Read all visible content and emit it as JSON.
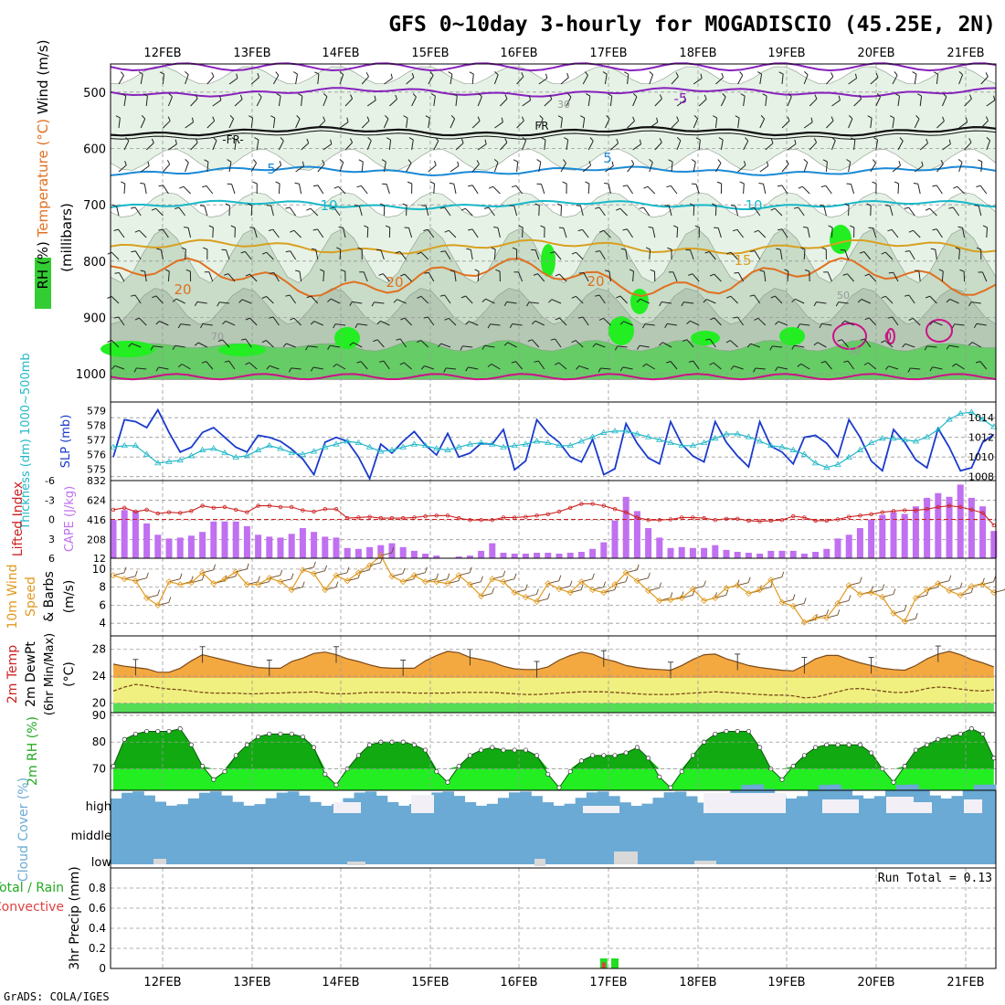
{
  "header": {
    "title": "GFS 0~10day 3-hourly for MOGADISCIO (45.25E, 2N)"
  },
  "footer": {
    "credit": "GrADS: COLA/IGES"
  },
  "colors": {
    "rh_light": "#e6f2e6",
    "rh_mid": "#c8dcc8",
    "rh_dark": "#b4c8b4",
    "rh_green": "#66cc66",
    "rh_bright": "#22ee22",
    "temp_purple": "#8822bb",
    "temp_blue": "#1a8ad6",
    "temp_cyan": "#18b8c8",
    "temp_gold": "#d8a020",
    "temp_orange": "#e07020",
    "temp_magenta": "#cc1188",
    "slp": "#1a3acc",
    "thickness": "#22b8c8",
    "cape": "#c070f0",
    "lifted": "#cc2222",
    "wind_speed": "#e09a20",
    "temp_fill": "#f4a840",
    "dew_fill": "#f0f080",
    "ground": "#55dd55",
    "rh_dark_fill": "#11aa11",
    "rh_light_fill": "#22ee22",
    "cloud": "#6aaad4",
    "rain": "#22dd22",
    "convective": "#e04040"
  },
  "chart_data": [
    {
      "type": "contour",
      "name": "upper-air",
      "ylabel_parts": [
        "RH (%)",
        "Temperature (°C)",
        "Wind (m/s)"
      ],
      "ylabel_axis": "(millibars)",
      "yticks": [
        "500",
        "600",
        "700",
        "800",
        "900",
        "1000"
      ],
      "ylim": [
        1050,
        450
      ],
      "xtick_labels": [
        "12FEB",
        "13FEB",
        "14FEB",
        "15FEB",
        "16FEB",
        "17FEB",
        "18FEB",
        "19FEB",
        "20FEB",
        "21FEB"
      ],
      "contour_labels": [
        "-5",
        "-FR-",
        "FR",
        "5",
        "5",
        "10",
        "10",
        "15",
        "20",
        "20",
        "20",
        "30",
        "50",
        "50",
        "70",
        "0"
      ],
      "isotherms": [
        {
          "name": "-5",
          "level": 500
        },
        {
          "name": "FR",
          "level": 570
        },
        {
          "name": "5",
          "level": 640
        },
        {
          "name": "10",
          "level": 700
        },
        {
          "name": "15",
          "level": 775
        },
        {
          "name": "20",
          "level": 830
        }
      ]
    },
    {
      "type": "line",
      "name": "slp-thickness",
      "ylabel_left": "Thickness (dm) 1000~500mb",
      "ylabel_right": "SLP (mb)",
      "left_ticks": [
        "575",
        "576",
        "577",
        "578",
        "579"
      ],
      "right_ticks": [
        "1008",
        "1010",
        "1012",
        "1014"
      ],
      "ylim_left": [
        574.2,
        579.6
      ],
      "ylim_right": [
        1007.6,
        1015.6
      ],
      "series": [
        {
          "name": "SLP",
          "axis": "right",
          "values": [
            1010,
            1013.8,
            1013.6,
            1013,
            1014.8,
            1012.5,
            1010.5,
            1011,
            1012.5,
            1013,
            1012,
            1011,
            1010.5,
            1012.2,
            1012,
            1011.6,
            1010.8,
            1009.8,
            1008.2,
            1011.5,
            1012,
            1011.6,
            1010,
            1007.8,
            1011.3,
            1010.4,
            1011.6,
            1012.6,
            1011.2,
            1010.2,
            1012.4,
            1010,
            1010.4,
            1011.4,
            1011.3,
            1012.8,
            1008.7,
            1009.6,
            1013.8,
            1012.4,
            1011.5,
            1010,
            1009.5,
            1011.8,
            1008.2,
            1008.8,
            1013.4,
            1011.4,
            1009.9,
            1009.3,
            1013.6,
            1011.3,
            1010.1,
            1009.5,
            1013.6,
            1011.5,
            1010.1,
            1009,
            1013.6,
            1011.1,
            1010.5,
            1009.3,
            1012,
            1012.2,
            1011.4,
            1010,
            1013.8,
            1012,
            1009.6,
            1008.6,
            1012.8,
            1011.5,
            1009.7,
            1008.9,
            1012.9,
            1011,
            1008.6,
            1008.9,
            1011.5,
            1012.3
          ]
        },
        {
          "name": "Thickness",
          "axis": "left",
          "values": [
            576.5,
            576.6,
            576.6,
            576,
            575.4,
            575.5,
            575.6,
            575.9,
            576.3,
            576.4,
            576.1,
            575.8,
            575.9,
            576.3,
            576.6,
            576.4,
            576.1,
            576,
            576.2,
            576.5,
            576.7,
            576.9,
            576.8,
            576.5,
            576.2,
            576.3,
            576.5,
            576.7,
            576.6,
            576.4,
            576.3,
            576.5,
            576.7,
            576.8,
            576.7,
            576.5,
            576.6,
            576.7,
            576.9,
            576.8,
            576.6,
            576.6,
            576.9,
            577.2,
            577.5,
            577.6,
            577.6,
            577.4,
            577.2,
            577,
            576.8,
            576.6,
            576.6,
            576.8,
            577.1,
            577.4,
            577.4,
            577.2,
            576.9,
            576.6,
            576.5,
            576.3,
            576,
            575.4,
            575.1,
            575.3,
            575.8,
            576.3,
            576.8,
            577.1,
            577.1,
            577,
            576.9,
            577.2,
            577.7,
            578.4,
            578.8,
            578.9,
            578.4,
            577.9
          ]
        }
      ]
    },
    {
      "type": "bar-line",
      "name": "cape-lifted",
      "ylabel_left": "Lifted Index",
      "ylabel_right": "CAPE (J/kg)",
      "left_ticks": [
        "-6",
        "-3",
        "0",
        "3",
        "6"
      ],
      "right_ticks": [
        "832",
        "624",
        "416",
        "208",
        "12"
      ],
      "cape_ylim": [
        12,
        832
      ],
      "lifted_ylim": [
        6,
        -6
      ],
      "series": [
        {
          "name": "CAPE",
          "values": [
            416,
            520,
            510,
            380,
            260,
            220,
            230,
            250,
            290,
            400,
            400,
            400,
            350,
            260,
            240,
            230,
            270,
            330,
            290,
            240,
            230,
            120,
            110,
            130,
            150,
            170,
            130,
            90,
            60,
            40,
            12,
            30,
            40,
            90,
            170,
            70,
            60,
            60,
            70,
            70,
            60,
            70,
            80,
            110,
            180,
            410,
            660,
            510,
            330,
            230,
            120,
            130,
            120,
            120,
            150,
            100,
            80,
            70,
            60,
            90,
            90,
            90,
            60,
            80,
            110,
            220,
            260,
            330,
            420,
            470,
            500,
            480,
            560,
            650,
            700,
            660,
            790,
            650,
            560,
            300
          ]
        },
        {
          "name": "Lifted Index",
          "values": [
            -1.5,
            -1.8,
            -1.2,
            -1.5,
            -0.9,
            -1.1,
            -1,
            -1.3,
            -2.1,
            -1.8,
            -1.9,
            -1.5,
            -1.1,
            -2.1,
            -2.1,
            -1.9,
            -1.9,
            -1.4,
            -1.2,
            -1.6,
            -1.6,
            -0.2,
            -0.3,
            -0.4,
            -0.2,
            -0.2,
            -0.2,
            -0.3,
            -0.5,
            -0.6,
            -0.6,
            -0.2,
            0.1,
            0.1,
            0.1,
            -0.3,
            -0.3,
            -0.4,
            -0.6,
            -0.8,
            -1.2,
            -1.8,
            -2.4,
            -2.4,
            -2.1,
            -1.6,
            -1.1,
            -0.3,
            0.1,
            0.1,
            0,
            -0.3,
            -0.3,
            -0.2,
            0.1,
            -0.1,
            -0.1,
            0.2,
            0.3,
            0.2,
            0.1,
            -0.5,
            -0.3,
            0.2,
            0.2,
            0,
            -0.4,
            -0.6,
            -0.8,
            -1.1,
            -1.3,
            -1.4,
            -1.4,
            -1.6,
            -1.9,
            -2.1,
            -1.9,
            -1.5,
            -1,
            0.9
          ]
        }
      ]
    },
    {
      "type": "line",
      "name": "wind-10m",
      "ylabel_lines": [
        "10m Wind",
        "Speed",
        "& Barbs",
        "(m/s)"
      ],
      "yticks": [
        "4",
        "6",
        "8",
        "10"
      ],
      "ylim": [
        2.6,
        11.2
      ],
      "series": [
        {
          "name": "Speed",
          "values": [
            9.3,
            8.9,
            8.7,
            6.8,
            6,
            8.6,
            8.3,
            8.5,
            9.6,
            8.4,
            8.9,
            9.7,
            8.3,
            8.3,
            9,
            8.6,
            7.7,
            9.9,
            9.5,
            7.7,
            9.3,
            8.7,
            9.6,
            10.4,
            11.5,
            9.2,
            8.6,
            9.3,
            8.6,
            8.6,
            8.4,
            9.3,
            8.3,
            7,
            8.9,
            8.6,
            7.4,
            6.9,
            6.4,
            8.4,
            7.8,
            7.4,
            8.6,
            7.7,
            7.4,
            8.3,
            9.6,
            8.7,
            7.6,
            6.5,
            6.6,
            6.8,
            7.8,
            6.5,
            6.8,
            7.9,
            8.2,
            7.3,
            7.7,
            8.8,
            6.3,
            5.9,
            4.1,
            4.6,
            4.6,
            6.2,
            8.2,
            7.2,
            7.4,
            6.9,
            5.1,
            4.2,
            6.8,
            7.7,
            8.4,
            7.6,
            7.1,
            8.1,
            8.3,
            7.4
          ]
        }
      ]
    },
    {
      "type": "area",
      "name": "temperature-2m",
      "ylabel_lines": [
        "2m Temp",
        "2m DewPt",
        "(6hr Min/Max)",
        "(°C)"
      ],
      "yticks": [
        "20",
        "24",
        "28"
      ],
      "ylim": [
        18.6,
        30
      ],
      "series": [
        {
          "name": "Temperature",
          "values": [
            25.8,
            25.5,
            25.3,
            25.1,
            24.6,
            24.6,
            25.2,
            26.3,
            27.2,
            26.8,
            26.4,
            26,
            25.6,
            25.3,
            25.2,
            25.2,
            26.2,
            26.7,
            27.4,
            27.6,
            27.2,
            26.6,
            26.2,
            25.7,
            25.3,
            25.2,
            25.2,
            25.2,
            26.3,
            27.1,
            27.7,
            27.5,
            26.8,
            26.5,
            26.1,
            25.5,
            25.1,
            25,
            25,
            25.4,
            26.4,
            27.1,
            27.6,
            27.3,
            26.6,
            26.2,
            25.6,
            25.3,
            25.1,
            25,
            24.9,
            25.6,
            26.5,
            27.2,
            27.3,
            26.6,
            26.1,
            25.6,
            25.3,
            25.1,
            24.9,
            24.8,
            25.6,
            26.6,
            27.1,
            27.1,
            26.5,
            26,
            25.6,
            25.2,
            25,
            24.9,
            25.6,
            26.6,
            27.3,
            27.7,
            27.2,
            26.5,
            26,
            25.4
          ]
        },
        {
          "name": "Dew Point",
          "values": [
            21.8,
            22.4,
            22.8,
            22.6,
            22.3,
            22.1,
            22,
            21.8,
            21.6,
            21.5,
            21.5,
            21.5,
            21.4,
            21.4,
            21.5,
            21.5,
            21.6,
            21.6,
            21.7,
            21.5,
            21.4,
            21.4,
            21.5,
            21.6,
            21.6,
            21.6,
            21.6,
            21.5,
            21.5,
            21.5,
            21.5,
            21.6,
            21.6,
            21.6,
            21.6,
            21.5,
            21.4,
            21.3,
            21.3,
            21.4,
            21.5,
            21.6,
            21.7,
            21.7,
            21.7,
            21.6,
            21.5,
            21.4,
            21.3,
            21.3,
            21.3,
            21.4,
            21.5,
            21.6,
            21.7,
            21.6,
            21.5,
            21.4,
            21.3,
            21.2,
            21.2,
            21.1,
            20.8,
            20.9,
            21.3,
            21.7,
            22.1,
            22.2,
            22,
            21.8,
            21.6,
            21.6,
            21.8,
            22.2,
            22.4,
            22.3,
            22.1,
            21.9,
            21.8,
            22
          ]
        }
      ]
    },
    {
      "type": "area",
      "name": "rh-2m",
      "ylabel": "2m RH (%)",
      "yticks": [
        "70",
        "80",
        "90"
      ],
      "ylim": [
        62,
        91
      ],
      "series": [
        {
          "name": "RH",
          "values": [
            71,
            81,
            83,
            84,
            84,
            84,
            85,
            79,
            71,
            66,
            69,
            75,
            79,
            82,
            83,
            83,
            83,
            82,
            78,
            68,
            64,
            70,
            75,
            79,
            80,
            80,
            80,
            79,
            77,
            69,
            65,
            71,
            75,
            77,
            78,
            77,
            77,
            77,
            75,
            68,
            63,
            69,
            73,
            75,
            75,
            75,
            76,
            78,
            74,
            67,
            63,
            69,
            75,
            80,
            83,
            84,
            84,
            84,
            78,
            70,
            66,
            71,
            75,
            78,
            79,
            79,
            79,
            79,
            76,
            70,
            65,
            71,
            77,
            79,
            81,
            82,
            83,
            85,
            83,
            74
          ]
        }
      ]
    },
    {
      "type": "bar",
      "name": "cloud-cover",
      "ylabel": "Cloud Cover (%)",
      "level_labels": [
        "high",
        "middle",
        "low"
      ]
    },
    {
      "type": "bar",
      "name": "precip",
      "ylabel_lines": [
        "Total / Rain",
        "Convective",
        "3hr Precip (mm)"
      ],
      "yticks": [
        "0",
        "0.2",
        "0.4",
        "0.6",
        "0.8"
      ],
      "ylim": [
        0,
        1
      ],
      "annotation": "Run Total = 0.13",
      "xtick_labels": [
        "12FEB",
        "13FEB",
        "14FEB",
        "15FEB",
        "16FEB",
        "17FEB",
        "18FEB",
        "19FEB",
        "20FEB",
        "21FEB"
      ],
      "bars": [
        {
          "step": 44,
          "total": 0.1,
          "convective": 0.06
        },
        {
          "step": 45,
          "total": 0.1,
          "convective": 0.0
        }
      ]
    }
  ]
}
